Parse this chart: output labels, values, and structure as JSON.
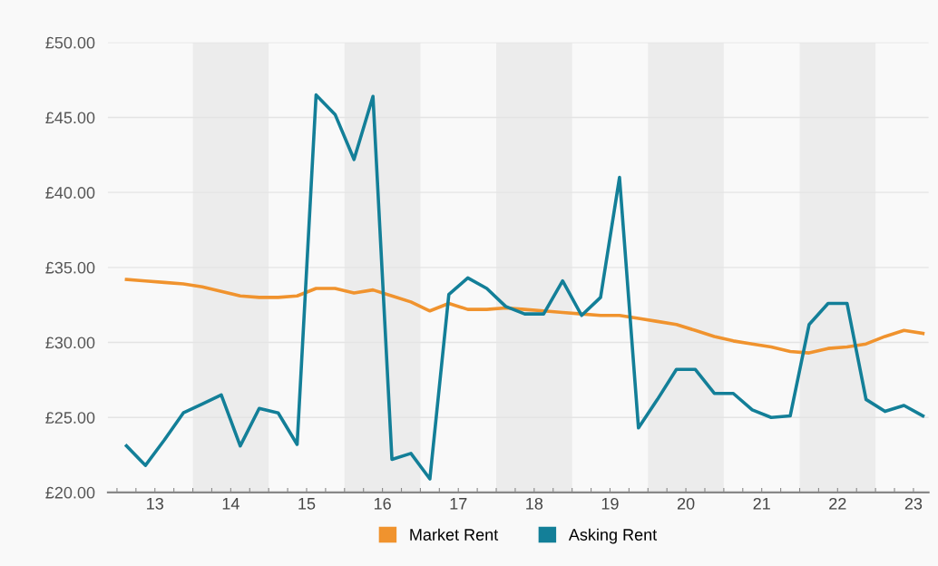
{
  "chart_data": {
    "type": "line",
    "x": [
      12.625,
      12.875,
      13.125,
      13.375,
      13.625,
      13.875,
      14.125,
      14.375,
      14.625,
      14.875,
      15.125,
      15.375,
      15.625,
      15.875,
      16.125,
      16.375,
      16.625,
      16.875,
      17.125,
      17.375,
      17.625,
      17.875,
      18.125,
      18.375,
      18.625,
      18.875,
      19.125,
      19.375,
      19.625,
      19.875,
      20.125,
      20.375,
      20.625,
      20.875,
      21.125,
      21.375,
      21.625,
      21.875,
      22.125,
      22.375,
      22.625,
      22.875,
      23.125
    ],
    "series": [
      {
        "name": "Market Rent",
        "color": "#f0932e",
        "values": [
          34.2,
          34.1,
          34.0,
          33.9,
          33.7,
          33.4,
          33.1,
          33.0,
          33.0,
          33.1,
          33.6,
          33.6,
          33.3,
          33.5,
          33.1,
          32.7,
          32.1,
          32.6,
          32.2,
          32.2,
          32.3,
          32.2,
          32.1,
          32.0,
          31.9,
          31.8,
          31.8,
          31.6,
          31.4,
          31.2,
          30.8,
          30.4,
          30.1,
          29.9,
          29.7,
          29.4,
          29.3,
          29.6,
          29.7,
          29.9,
          30.4,
          30.8,
          30.6
        ]
      },
      {
        "name": "Asking Rent",
        "color": "#137f98",
        "values": [
          23.1,
          21.8,
          23.5,
          25.3,
          25.9,
          26.5,
          23.1,
          25.6,
          25.3,
          23.2,
          46.5,
          45.2,
          42.2,
          46.4,
          22.2,
          22.6,
          20.9,
          33.2,
          34.3,
          33.6,
          32.4,
          31.9,
          31.9,
          34.1,
          31.8,
          33.0,
          41.0,
          24.3,
          26.2,
          28.2,
          28.2,
          26.6,
          26.6,
          25.5,
          25.0,
          25.1,
          31.2,
          32.6,
          32.6,
          26.2,
          25.4,
          25.8,
          25.1
        ]
      }
    ],
    "xlim": [
      12.38,
      23.2
    ],
    "xticks": [
      {
        "value": 12.5,
        "label": null
      },
      {
        "value": 12.75,
        "label": null
      },
      13,
      {
        "value": 13.25,
        "label": null
      },
      {
        "value": 13.5,
        "label": null
      },
      {
        "value": 13.75,
        "label": null
      },
      14,
      {
        "value": 14.25,
        "label": null
      },
      {
        "value": 14.5,
        "label": null
      },
      {
        "value": 14.75,
        "label": null
      },
      15,
      {
        "value": 15.25,
        "label": null
      },
      {
        "value": 15.5,
        "label": null
      },
      {
        "value": 15.75,
        "label": null
      },
      16,
      {
        "value": 16.25,
        "label": null
      },
      {
        "value": 16.5,
        "label": null
      },
      {
        "value": 16.75,
        "label": null
      },
      17,
      {
        "value": 17.25,
        "label": null
      },
      {
        "value": 17.5,
        "label": null
      },
      {
        "value": 17.75,
        "label": null
      },
      18,
      {
        "value": 18.25,
        "label": null
      },
      {
        "value": 18.5,
        "label": null
      },
      {
        "value": 18.75,
        "label": null
      },
      19,
      {
        "value": 19.25,
        "label": null
      },
      {
        "value": 19.5,
        "label": null
      },
      {
        "value": 19.75,
        "label": null
      },
      20,
      {
        "value": 20.25,
        "label": null
      },
      {
        "value": 20.5,
        "label": null
      },
      {
        "value": 20.75,
        "label": null
      },
      21,
      {
        "value": 21.25,
        "label": null
      },
      {
        "value": 21.5,
        "label": null
      },
      {
        "value": 21.75,
        "label": null
      },
      22,
      {
        "value": 22.25,
        "label": null
      },
      {
        "value": 22.5,
        "label": null
      },
      {
        "value": 22.75,
        "label": null
      },
      23
    ],
    "ylim": [
      20,
      50
    ],
    "yticks": [
      {
        "value": 20,
        "label": "£20.00"
      },
      {
        "value": 25,
        "label": "£25.00"
      },
      {
        "value": 30,
        "label": "£30.00"
      },
      {
        "value": 35,
        "label": "£35.00"
      },
      {
        "value": 40,
        "label": "£40.00"
      },
      {
        "value": 45,
        "label": "£45.00"
      },
      {
        "value": 50,
        "label": "£50.00"
      }
    ],
    "bands": [
      {
        "axis": "x",
        "from": 13.5,
        "to": 14.5,
        "color": "#ececec"
      },
      {
        "axis": "x",
        "from": 15.5,
        "to": 16.5,
        "color": "#ececec"
      },
      {
        "axis": "x",
        "from": 17.5,
        "to": 18.5,
        "color": "#ececec"
      },
      {
        "axis": "x",
        "from": 19.5,
        "to": 20.5,
        "color": "#ececec"
      },
      {
        "axis": "x",
        "from": 21.5,
        "to": 22.5,
        "color": "#ececec"
      }
    ],
    "grid": "y",
    "legend": "bottom",
    "marker": "none",
    "line_style": "solid"
  }
}
